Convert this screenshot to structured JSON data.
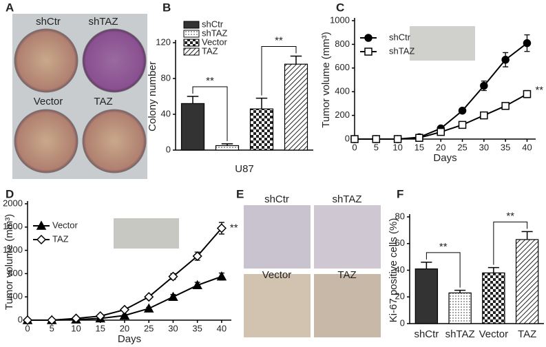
{
  "panel_labels": [
    "A",
    "B",
    "C",
    "D",
    "E",
    "F"
  ],
  "panel_a": {
    "labels": [
      "shCtr",
      "shTAZ",
      "Vector",
      "TAZ"
    ]
  },
  "panel_e": {
    "labels": [
      "shCtr",
      "shTAZ",
      "Vector",
      "TAZ"
    ]
  },
  "chart_data": [
    {
      "type": "bar",
      "categories": [
        "shCtr",
        "shTAZ",
        "Vector",
        "TAZ"
      ],
      "values": [
        52,
        5,
        46,
        96
      ],
      "errors": [
        8,
        2,
        12,
        9
      ],
      "fills": [
        "solid",
        "dots",
        "checker",
        "hatch"
      ],
      "color": "#333333",
      "ylabel": "Colony number",
      "xlabel": "U87",
      "ylim": [
        0,
        120
      ],
      "yticks": [
        0,
        40,
        80,
        120
      ],
      "legend": "upper left",
      "annotations": [
        "**",
        "**"
      ]
    },
    {
      "type": "line",
      "x": [
        0,
        5,
        10,
        15,
        20,
        25,
        30,
        35,
        40
      ],
      "series": [
        {
          "name": "shCtr",
          "marker": "circle",
          "fill": "#000000",
          "values": [
            0,
            0,
            0,
            15,
            90,
            240,
            450,
            670,
            810
          ],
          "errors": [
            0,
            0,
            0,
            5,
            10,
            20,
            40,
            60,
            70
          ]
        },
        {
          "name": "shTAZ",
          "marker": "square",
          "fill": "#ffffff",
          "values": [
            0,
            0,
            0,
            10,
            60,
            120,
            200,
            280,
            380
          ],
          "errors": [
            0,
            0,
            0,
            5,
            8,
            10,
            15,
            25,
            30
          ]
        }
      ],
      "color": "#000000",
      "xlabel": "Days",
      "ylabel": "Tumor volume (mm³)",
      "xlim": [
        0,
        42
      ],
      "ylim": [
        0,
        1000
      ],
      "xticks": [
        0,
        5,
        10,
        15,
        20,
        25,
        30,
        35,
        40
      ],
      "yticks": [
        0,
        200,
        400,
        600,
        800,
        1000
      ],
      "legend": "upper left",
      "annotations": [
        "**"
      ]
    },
    {
      "type": "line",
      "x": [
        0,
        5,
        10,
        15,
        20,
        25,
        30,
        35,
        40
      ],
      "series": [
        {
          "name": "Vector",
          "marker": "triangle",
          "fill": "#000000",
          "values": [
            0,
            0,
            10,
            30,
            80,
            200,
            400,
            600,
            750
          ],
          "errors": [
            0,
            0,
            3,
            5,
            10,
            20,
            40,
            50,
            60
          ]
        },
        {
          "name": "TAZ",
          "marker": "diamond",
          "fill": "#ffffff",
          "values": [
            0,
            0,
            30,
            70,
            180,
            400,
            750,
            1100,
            1580
          ],
          "errors": [
            0,
            0,
            5,
            10,
            20,
            30,
            50,
            70,
            100
          ]
        }
      ],
      "color": "#000000",
      "xlabel": "Days",
      "ylabel": "Tumor volume (mm³)",
      "xlim": [
        0,
        42
      ],
      "ylim": [
        0,
        2000
      ],
      "xticks": [
        0,
        5,
        10,
        15,
        20,
        25,
        30,
        35,
        40
      ],
      "yticks": [
        0,
        400,
        800,
        1200,
        1600,
        2000
      ],
      "legend": "upper left",
      "annotations": [
        "**"
      ]
    },
    {
      "type": "bar",
      "categories": [
        "shCtr",
        "shTAZ",
        "Vector",
        "TAZ"
      ],
      "values": [
        41,
        23,
        38,
        63
      ],
      "errors": [
        5,
        2,
        4,
        6
      ],
      "fills": [
        "solid",
        "dots",
        "checker",
        "hatch"
      ],
      "color": "#333333",
      "ylabel": "Ki-67 positive cells (%)",
      "ylim": [
        0,
        80
      ],
      "yticks": [
        0,
        20,
        40,
        60,
        80
      ],
      "annotations": [
        "**",
        "**"
      ]
    }
  ]
}
